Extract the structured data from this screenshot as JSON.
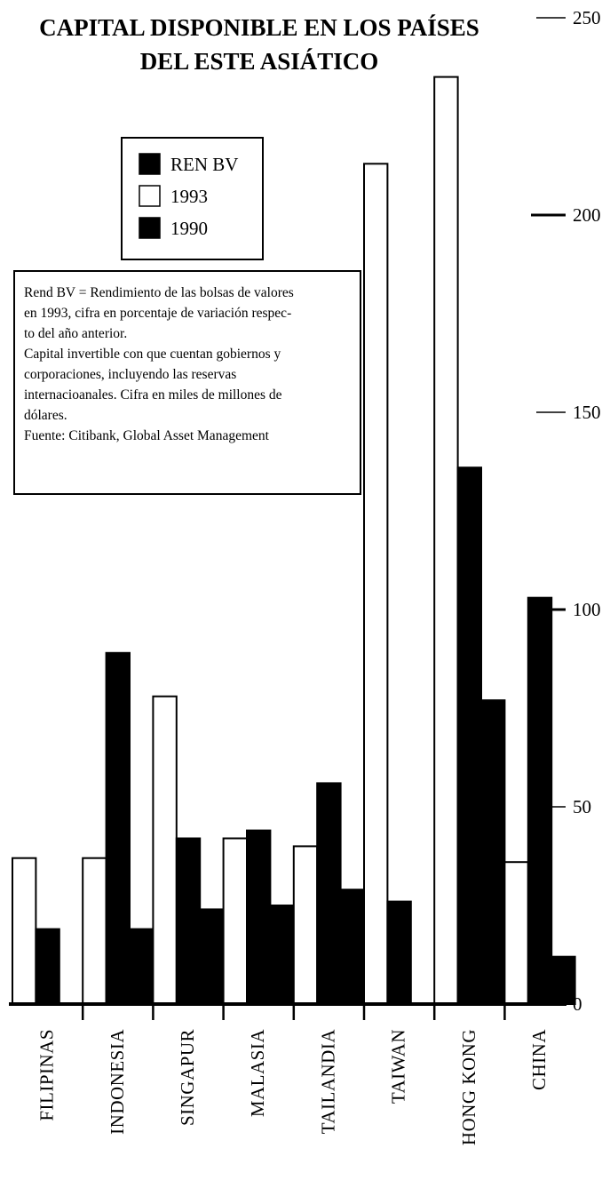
{
  "chart_data": {
    "type": "bar",
    "title": [
      "CAPITAL DISPONIBLE EN LOS PAÍSES",
      "DEL ESTE ASIÁTICO"
    ],
    "categories": [
      "FILIPINAS",
      "INDONESIA",
      "SINGAPUR",
      "MALASIA",
      "TAILANDIA",
      "TAIWAN",
      "HONG KONG",
      "CHINA"
    ],
    "series": [
      {
        "name": "1993",
        "color": "#ffffff",
        "values": [
          37,
          37,
          78,
          42,
          40,
          213,
          235,
          36
        ]
      },
      {
        "name": "REN BV",
        "color": "#000000",
        "values": [
          19,
          89,
          42,
          44,
          56,
          26,
          136,
          103
        ]
      },
      {
        "name": "1990",
        "color": "#000000",
        "values": [
          null,
          19,
          24,
          25,
          29,
          null,
          77,
          12
        ]
      }
    ],
    "legend": [
      "REN BV",
      "1993",
      "1990"
    ],
    "legend_position": "top-left",
    "ylim": [
      0,
      250
    ],
    "yticks": [
      0,
      50,
      100,
      150,
      200,
      250
    ],
    "axis_side": "right",
    "note": [
      "Rend BV = Rendimiento de las bolsas de valores",
      "en 1993, cifra en porcentaje de variación respec-",
      "to del año anterior.",
      "Capital invertible con que cuentan gobiernos y",
      "corporaciones, incluyendo las reservas",
      "internacioanales. Cifra en miles de millones de",
      "dólares.",
      "Fuente: Citibank, Global Asset Management"
    ]
  }
}
